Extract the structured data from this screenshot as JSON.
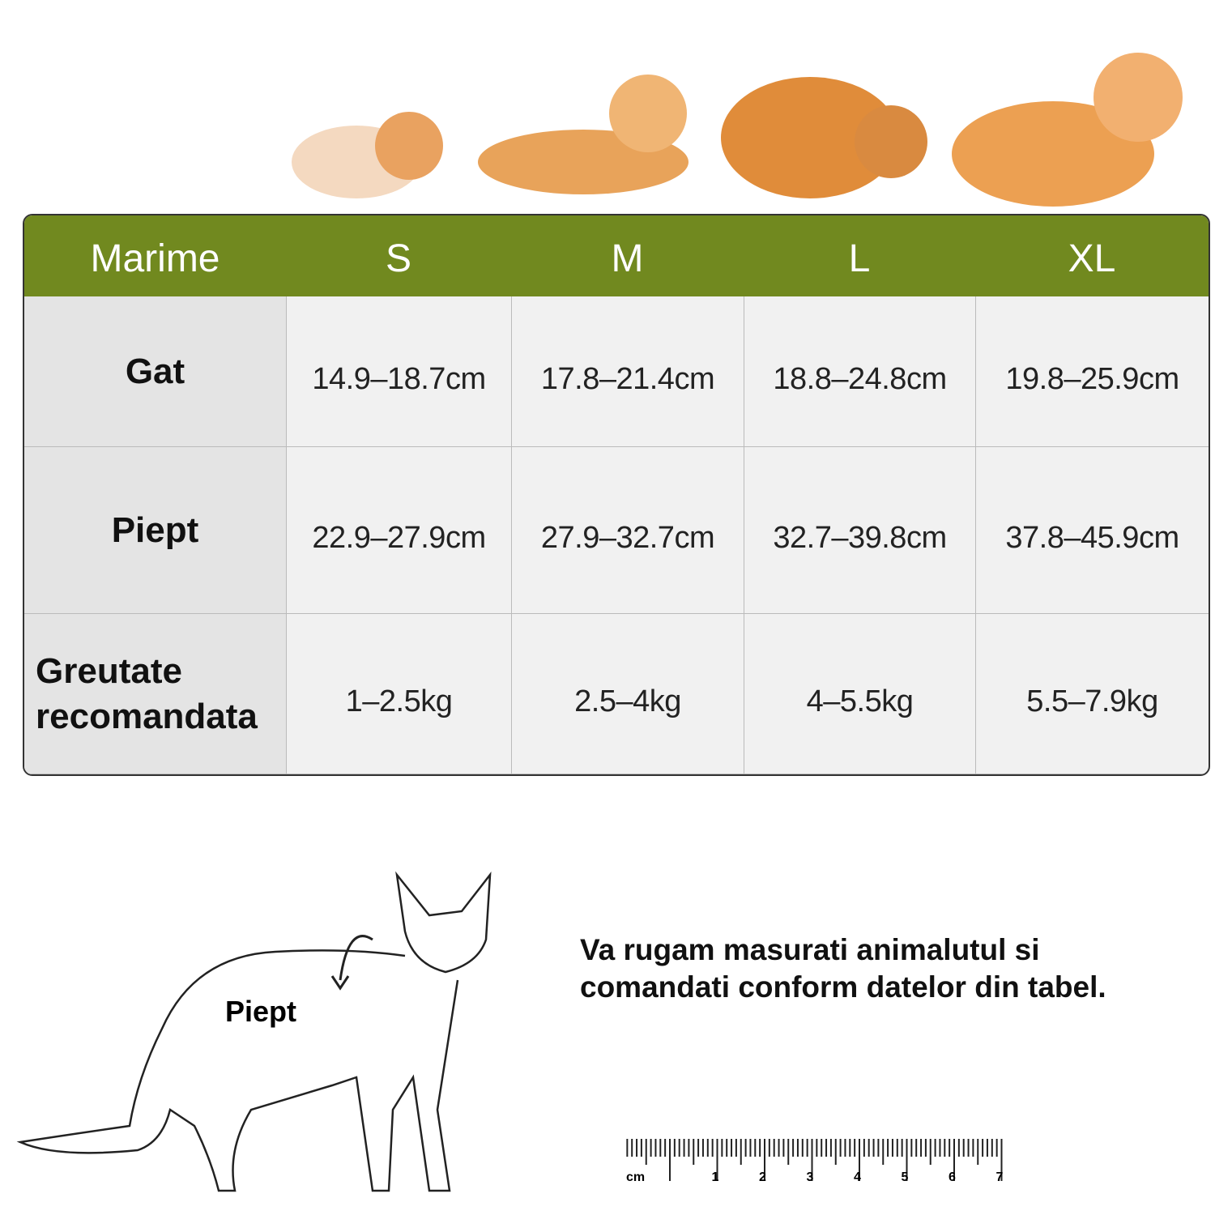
{
  "table": {
    "header": [
      "Marime",
      "S",
      "M",
      "L",
      "XL"
    ],
    "rows": [
      [
        "Gat",
        "14.9–18.7cm",
        "17.8–21.4cm",
        "18.8–24.8cm",
        "19.8–25.9cm"
      ],
      [
        "Piept",
        "22.9–27.9cm",
        "27.9–32.7cm",
        "32.7–39.8cm",
        "37.8–45.9cm"
      ],
      [
        "Greutate recomandata",
        "1–2.5kg",
        "2.5–4kg",
        "4–5.5kg",
        "5.5–7.9kg"
      ]
    ]
  },
  "diagram": {
    "label": "Piept"
  },
  "instruction": "Va rugam masurati animalutul si comandati conform datelor din tabel.",
  "ruler": {
    "unit": "cm",
    "labels": [
      "1",
      "2",
      "3",
      "4",
      "5",
      "6",
      "7"
    ]
  }
}
